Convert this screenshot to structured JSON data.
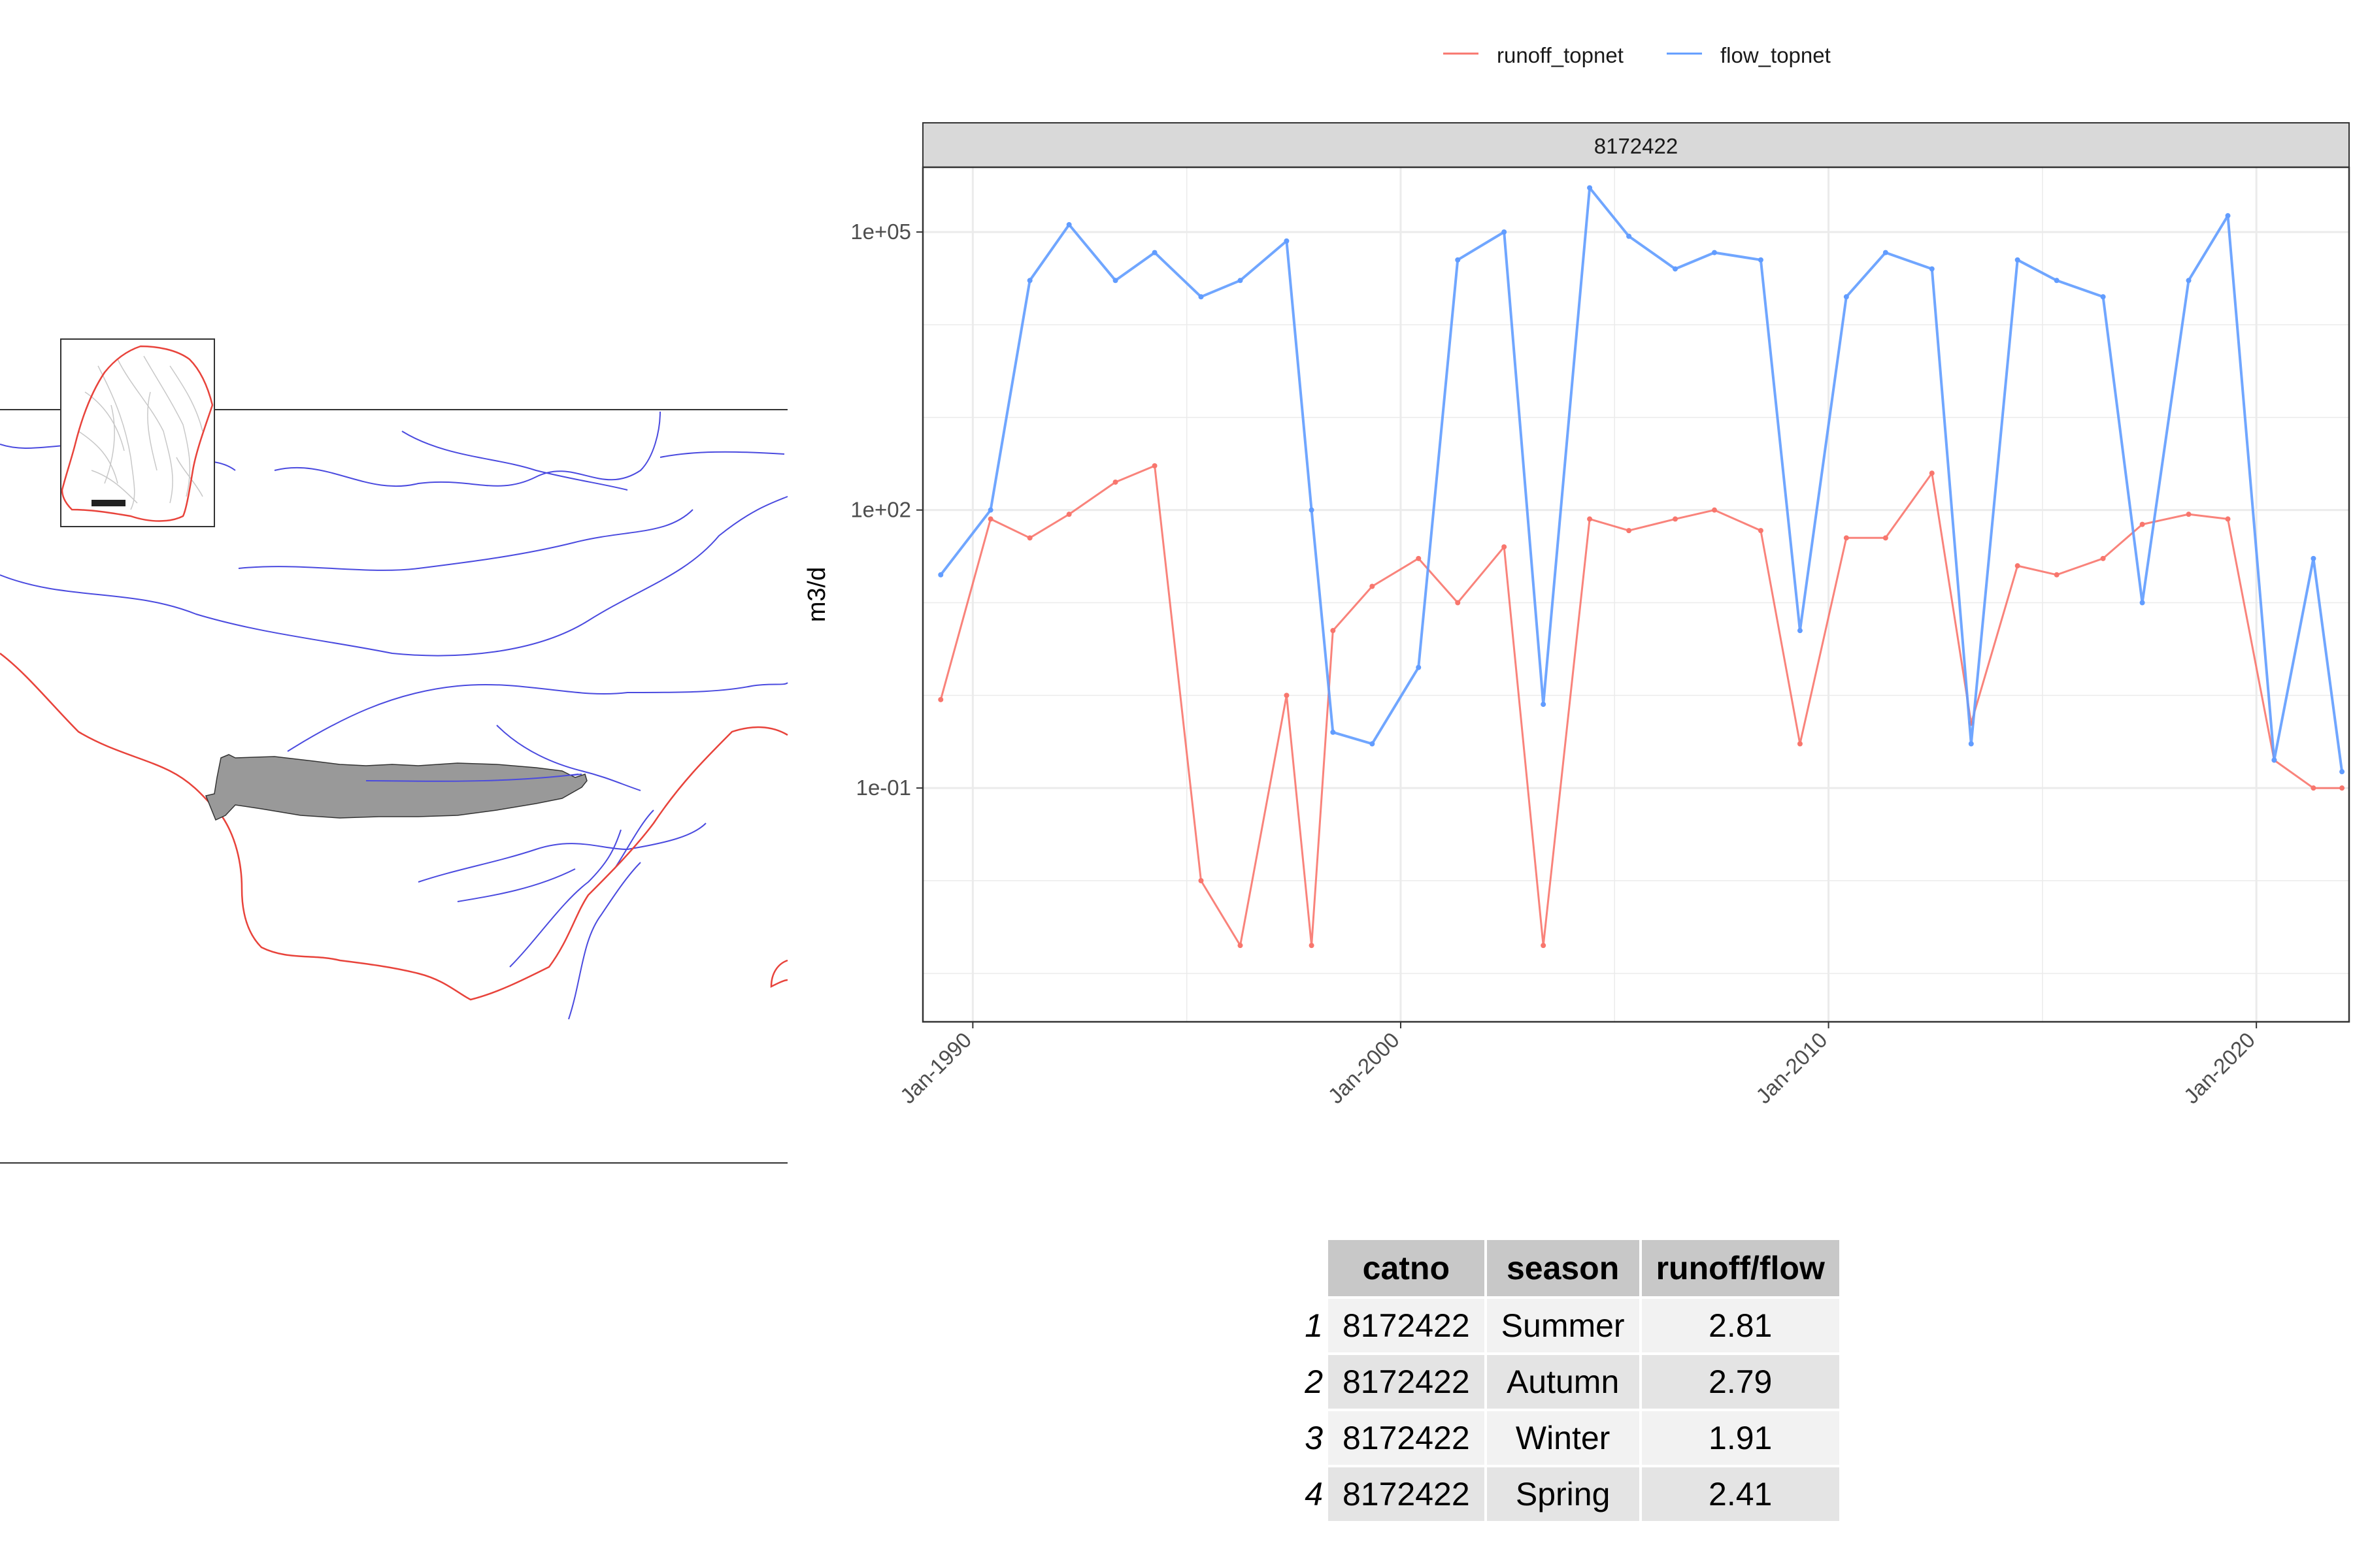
{
  "colors": {
    "runoff": "#f8766d",
    "flow": "#619cff",
    "river": "#4a4adf",
    "outline": "#e8433b",
    "catchment": "#999999",
    "strip": "#d9d9d9",
    "grid": "#ebebeb"
  },
  "map": {
    "catchment_fill": "#999999"
  },
  "chart_data": {
    "type": "line",
    "facet_label": "8172422",
    "ylabel": "m3/d",
    "xlabel": "",
    "y_scale": "log10",
    "ylim": [
      0.0003,
      500000
    ],
    "xlim": [
      "1988-11",
      "2022-03"
    ],
    "x_ticks": [
      "Jan-1990",
      "Jan-2000",
      "Jan-2010",
      "Jan-2020"
    ],
    "y_ticks": [
      "1e-01",
      "1e+02",
      "1e+05"
    ],
    "grid": true,
    "legend_position": "top",
    "series": [
      {
        "name": "runoff_topnet",
        "color": "#f8766d",
        "x": [
          "1989-04",
          "1990-06",
          "1991-05",
          "1992-04",
          "1993-05",
          "1994-04",
          "1995-05",
          "1996-04",
          "1997-05",
          "1997-12",
          "1998-06",
          "1999-05",
          "2000-06",
          "2001-05",
          "2002-06",
          "2003-05",
          "2004-06",
          "2005-05",
          "2006-06",
          "2007-05",
          "2008-06",
          "2009-05",
          "2010-06",
          "2011-05",
          "2012-06",
          "2013-05",
          "2014-06",
          "2015-05",
          "2016-06",
          "2017-05",
          "2018-06",
          "2019-05",
          "2020-06",
          "2021-05",
          "2022-01"
        ],
        "values": [
          0.9,
          80,
          50,
          90,
          200,
          300,
          0.01,
          0.002,
          1.0,
          0.002,
          5,
          15,
          30,
          10,
          40,
          0.002,
          80,
          60,
          80,
          100,
          60,
          0.3,
          50,
          50,
          250,
          0.5,
          25,
          20,
          30,
          70,
          90,
          80,
          0.2,
          0.1,
          0.1
        ]
      },
      {
        "name": "flow_topnet",
        "color": "#619cff",
        "x": [
          "1989-04",
          "1990-06",
          "1991-05",
          "1992-04",
          "1993-05",
          "1994-04",
          "1995-05",
          "1996-04",
          "1997-05",
          "1997-12",
          "1998-06",
          "1999-05",
          "2000-06",
          "2001-05",
          "2002-06",
          "2003-05",
          "2004-06",
          "2005-05",
          "2006-06",
          "2007-05",
          "2008-06",
          "2009-05",
          "2010-06",
          "2011-05",
          "2012-06",
          "2013-05",
          "2014-06",
          "2015-05",
          "2016-06",
          "2017-05",
          "2018-06",
          "2019-05",
          "2020-06",
          "2021-05",
          "2022-01"
        ],
        "values": [
          20,
          100,
          30000,
          120000,
          30000,
          60000,
          20000,
          30000,
          80000,
          100,
          0.4,
          0.3,
          2,
          50000,
          100000,
          0.8,
          300000,
          90000,
          40000,
          60000,
          50000,
          5,
          20000,
          60000,
          40000,
          0.3,
          50000,
          30000,
          20000,
          10,
          30000,
          150000,
          0.2,
          30,
          0.15
        ]
      }
    ]
  },
  "table": {
    "headers": [
      "catno",
      "season",
      "runoff/flow"
    ],
    "rows": [
      {
        "rownum": "1",
        "catno": "8172422",
        "season": "Summer",
        "ratio": "2.81"
      },
      {
        "rownum": "2",
        "catno": "8172422",
        "season": "Autumn",
        "ratio": "2.79"
      },
      {
        "rownum": "3",
        "catno": "8172422",
        "season": "Winter",
        "ratio": "1.91"
      },
      {
        "rownum": "4",
        "catno": "8172422",
        "season": "Spring",
        "ratio": "2.41"
      }
    ]
  }
}
